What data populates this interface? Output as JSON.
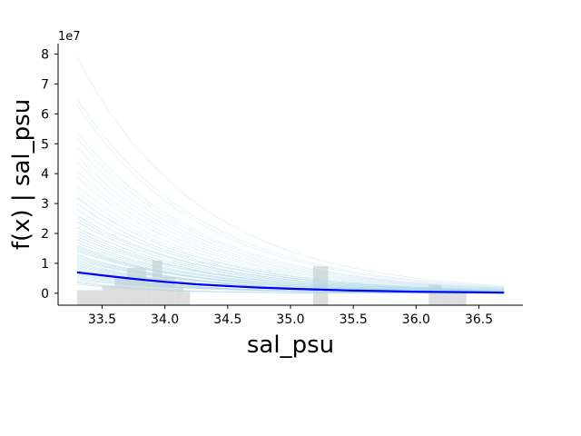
{
  "chart_data": {
    "type": "line",
    "title": "",
    "xlabel": "sal_psu",
    "ylabel": "f(x) | sal_psu",
    "y_offset_label": "1e7",
    "xlim": [
      33.15,
      36.85
    ],
    "ylim": [
      -0.4,
      8.35
    ],
    "x_ticks": [
      33.5,
      34.0,
      34.5,
      35.0,
      35.5,
      36.0,
      36.5
    ],
    "x_tick_labels": [
      "33.5",
      "34.0",
      "34.5",
      "35.0",
      "35.5",
      "36.0",
      "36.5"
    ],
    "y_ticks": [
      0,
      1,
      2,
      3,
      4,
      5,
      6,
      7,
      8
    ],
    "y_tick_labels": [
      "0",
      "1",
      "2",
      "3",
      "4",
      "5",
      "6",
      "7",
      "8"
    ],
    "grid": false,
    "mean_curve": {
      "color": "#0000ff",
      "x": [
        33.3,
        33.5,
        33.75,
        34.0,
        34.25,
        34.5,
        34.75,
        35.0,
        35.25,
        35.5,
        35.75,
        36.0,
        36.25,
        36.5,
        36.7
      ],
      "y": [
        0.7,
        0.6,
        0.48,
        0.38,
        0.3,
        0.24,
        0.19,
        0.15,
        0.12,
        0.09,
        0.07,
        0.05,
        0.04,
        0.03,
        0.02
      ]
    },
    "sample_curves": {
      "color": "#add8e6",
      "x_range": [
        33.3,
        36.7
      ],
      "y_start": [
        7.9,
        6.5,
        6.3,
        5.4,
        5.2,
        4.9,
        4.6,
        4.4,
        4.1,
        3.9,
        3.6,
        3.4,
        3.2,
        3.0,
        2.8,
        2.6,
        2.5,
        2.4,
        2.2,
        2.1,
        2.0,
        1.9,
        1.8,
        1.7,
        1.6,
        1.55,
        1.5,
        1.45,
        1.4,
        1.3,
        1.25,
        1.2,
        1.15,
        1.1,
        1.05,
        1.0,
        0.95,
        0.9,
        0.85,
        0.8,
        0.75,
        0.7,
        0.65,
        0.6,
        0.55,
        0.5,
        0.45,
        0.4,
        0.35,
        0.3
      ],
      "y_end": [
        0.25,
        0.22,
        0.2,
        0.18,
        0.17,
        0.16,
        0.15,
        0.14,
        0.13,
        0.12,
        0.11,
        0.1,
        0.1,
        0.09,
        0.09,
        0.08,
        0.08,
        0.07,
        0.07,
        0.06,
        0.06,
        0.06,
        0.05,
        0.05,
        0.05,
        0.04,
        0.04,
        0.04,
        0.04,
        0.03,
        0.03,
        0.03,
        0.03,
        0.03,
        0.02,
        0.02,
        0.02,
        0.02,
        0.02,
        0.02,
        0.01,
        0.01,
        0.01,
        0.01,
        0.01,
        0.01,
        0.01,
        0.0,
        0.0,
        0.0
      ]
    },
    "histogram": {
      "color": "#d3d3d3",
      "bins": [
        {
          "x0": 33.3,
          "x1": 33.5,
          "count": 0.1
        },
        {
          "x0": 33.5,
          "x1": 33.6,
          "count": 0.25
        },
        {
          "x0": 33.6,
          "x1": 33.7,
          "count": 0.55
        },
        {
          "x0": 33.7,
          "x1": 33.85,
          "count": 0.85
        },
        {
          "x0": 33.85,
          "x1": 33.9,
          "count": 0.5
        },
        {
          "x0": 33.9,
          "x1": 33.98,
          "count": 1.1
        },
        {
          "x0": 33.98,
          "x1": 34.08,
          "count": 0.55
        },
        {
          "x0": 34.08,
          "x1": 34.15,
          "count": 0.2
        },
        {
          "x0": 34.15,
          "x1": 34.2,
          "count": 0.05
        },
        {
          "x0": 35.18,
          "x1": 35.3,
          "count": 0.9
        },
        {
          "x0": 36.1,
          "x1": 36.2,
          "count": 0.28
        },
        {
          "x0": 36.2,
          "x1": 36.28,
          "count": 0.15
        },
        {
          "x0": 36.28,
          "x1": 36.4,
          "count": 0.05
        }
      ]
    }
  }
}
